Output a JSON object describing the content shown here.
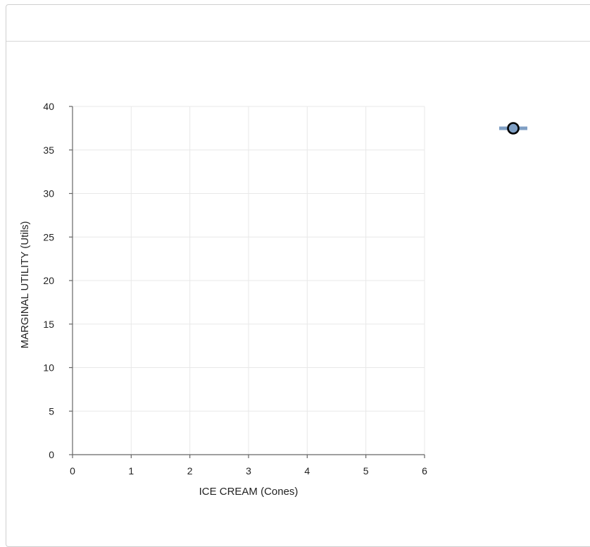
{
  "chart_data": {
    "type": "scatter",
    "title": "",
    "xlabel": "ICE CREAM (Cones)",
    "ylabel": "MARGINAL UTILITY (Utils)",
    "xlim": [
      0,
      6
    ],
    "ylim": [
      0,
      40
    ],
    "xticks": [
      "0",
      "1",
      "2",
      "3",
      "4",
      "5",
      "6"
    ],
    "yticks": [
      "0",
      "5",
      "10",
      "15",
      "20",
      "25",
      "30",
      "35",
      "40"
    ],
    "grid": true,
    "series": [
      {
        "name": "",
        "values": []
      }
    ],
    "legend": {
      "position": "top-right",
      "marker": "circle-with-line"
    },
    "colors": {
      "grid": "#e8e8e8",
      "axis": "#666666",
      "marker_fill": "#7f9fc4",
      "marker_stroke": "#000000",
      "legend_line": "#7f9fc4"
    }
  }
}
